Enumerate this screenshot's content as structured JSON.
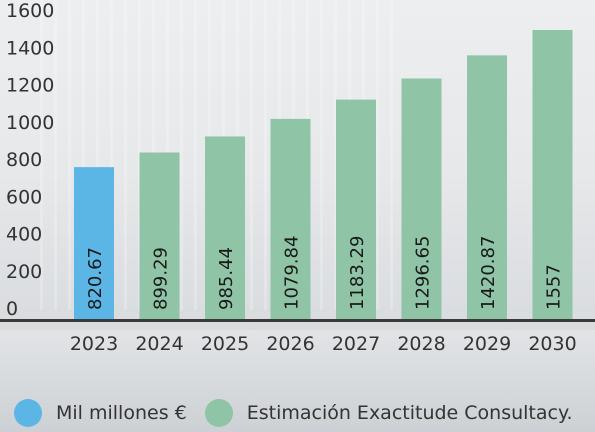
{
  "colors": {
    "actual": "#5bb6e6",
    "estimate": "#8fc4a6",
    "axis": "#3a3a3a"
  },
  "chart_data": {
    "type": "bar",
    "categories": [
      "2023",
      "2024",
      "2025",
      "2026",
      "2027",
      "2028",
      "2029",
      "2030"
    ],
    "values": [
      820.67,
      899.29,
      985.44,
      1079.84,
      1183.29,
      1296.65,
      1420.87,
      1557
    ],
    "value_labels": [
      "820.67",
      "899.29",
      "985.44",
      "1079.84",
      "1183.29",
      "1296.65",
      "1420.87",
      "1557"
    ],
    "series_type": [
      "actual",
      "estimate",
      "estimate",
      "estimate",
      "estimate",
      "estimate",
      "estimate",
      "estimate"
    ],
    "yticks": [
      0,
      200,
      400,
      600,
      800,
      1000,
      1200,
      1400,
      1600
    ],
    "ylim": [
      0,
      1600
    ],
    "grid": false,
    "legend_placement": "bottom"
  },
  "legend": {
    "actual_label": "Mil millones €",
    "estimate_label": "Estimación Exactitude Consultacy."
  }
}
